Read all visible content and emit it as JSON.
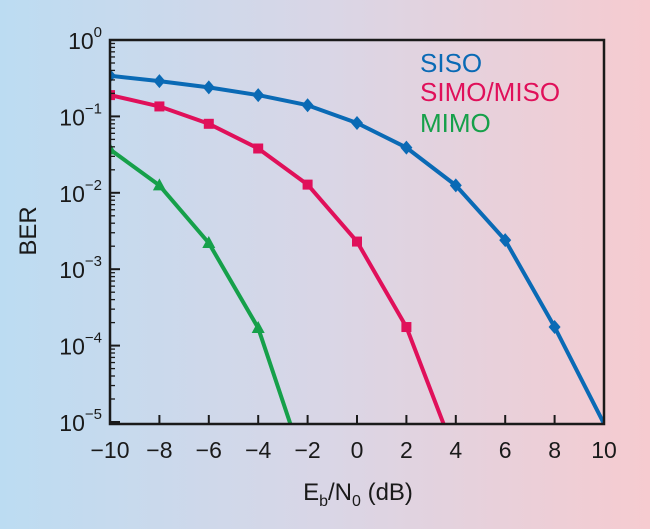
{
  "chart_data": {
    "type": "line",
    "xlabel_main": "E",
    "xlabel_sub1": "b",
    "xlabel_mid": "/N",
    "xlabel_sub2": "0",
    "xlabel_tail": " (dB)",
    "ylabel": "BER",
    "xlim": [
      -10,
      10
    ],
    "ylim": [
      1e-05,
      1
    ],
    "yscale": "log",
    "x_ticks": [
      -10,
      -8,
      -6,
      -4,
      -2,
      0,
      2,
      4,
      6,
      8,
      10
    ],
    "x_tick_labels": [
      "−10",
      "−8",
      "−6",
      "−4",
      "−2",
      "0",
      "2",
      "4",
      "6",
      "8",
      "10"
    ],
    "y_ticks": [
      {
        "value": 1,
        "base": "10",
        "exp": "0"
      },
      {
        "value": 0.1,
        "base": "10",
        "exp": "−1"
      },
      {
        "value": 0.01,
        "base": "10",
        "exp": "−2"
      },
      {
        "value": 0.001,
        "base": "10",
        "exp": "−3"
      },
      {
        "value": 0.0001,
        "base": "10",
        "exp": "−4"
      },
      {
        "value": 1e-05,
        "base": "10",
        "exp": "−5"
      }
    ],
    "grid": false,
    "legend": "top-right",
    "series": [
      {
        "name": "SISO",
        "color": "#0a6ab5",
        "marker": "diamond",
        "x": [
          -10,
          -8,
          -6,
          -4,
          -2,
          0,
          2,
          4,
          6,
          8,
          10
        ],
        "y": [
          0.34,
          0.29,
          0.24,
          0.19,
          0.14,
          0.082,
          0.039,
          0.0125,
          0.0024,
          0.000175,
          9.5e-06
        ],
        "markers": [
          true,
          true,
          true,
          true,
          true,
          true,
          true,
          true,
          true,
          true,
          false
        ]
      },
      {
        "name": "SIMO/MISO",
        "color": "#e0105a",
        "marker": "square",
        "x": [
          -10,
          -8,
          -6,
          -4,
          -2,
          0,
          2,
          3.5
        ],
        "y": [
          0.19,
          0.135,
          0.08,
          0.038,
          0.0128,
          0.0023,
          0.000175,
          9.5e-06
        ],
        "markers": [
          true,
          true,
          true,
          true,
          true,
          true,
          true,
          false
        ]
      },
      {
        "name": "MIMO",
        "color": "#16a04a",
        "marker": "triangle",
        "x": [
          -10,
          -8,
          -6,
          -4,
          -2.7
        ],
        "y": [
          0.037,
          0.0125,
          0.0022,
          0.00017,
          9.5e-06
        ],
        "markers": [
          true,
          true,
          true,
          true,
          false
        ]
      }
    ]
  }
}
